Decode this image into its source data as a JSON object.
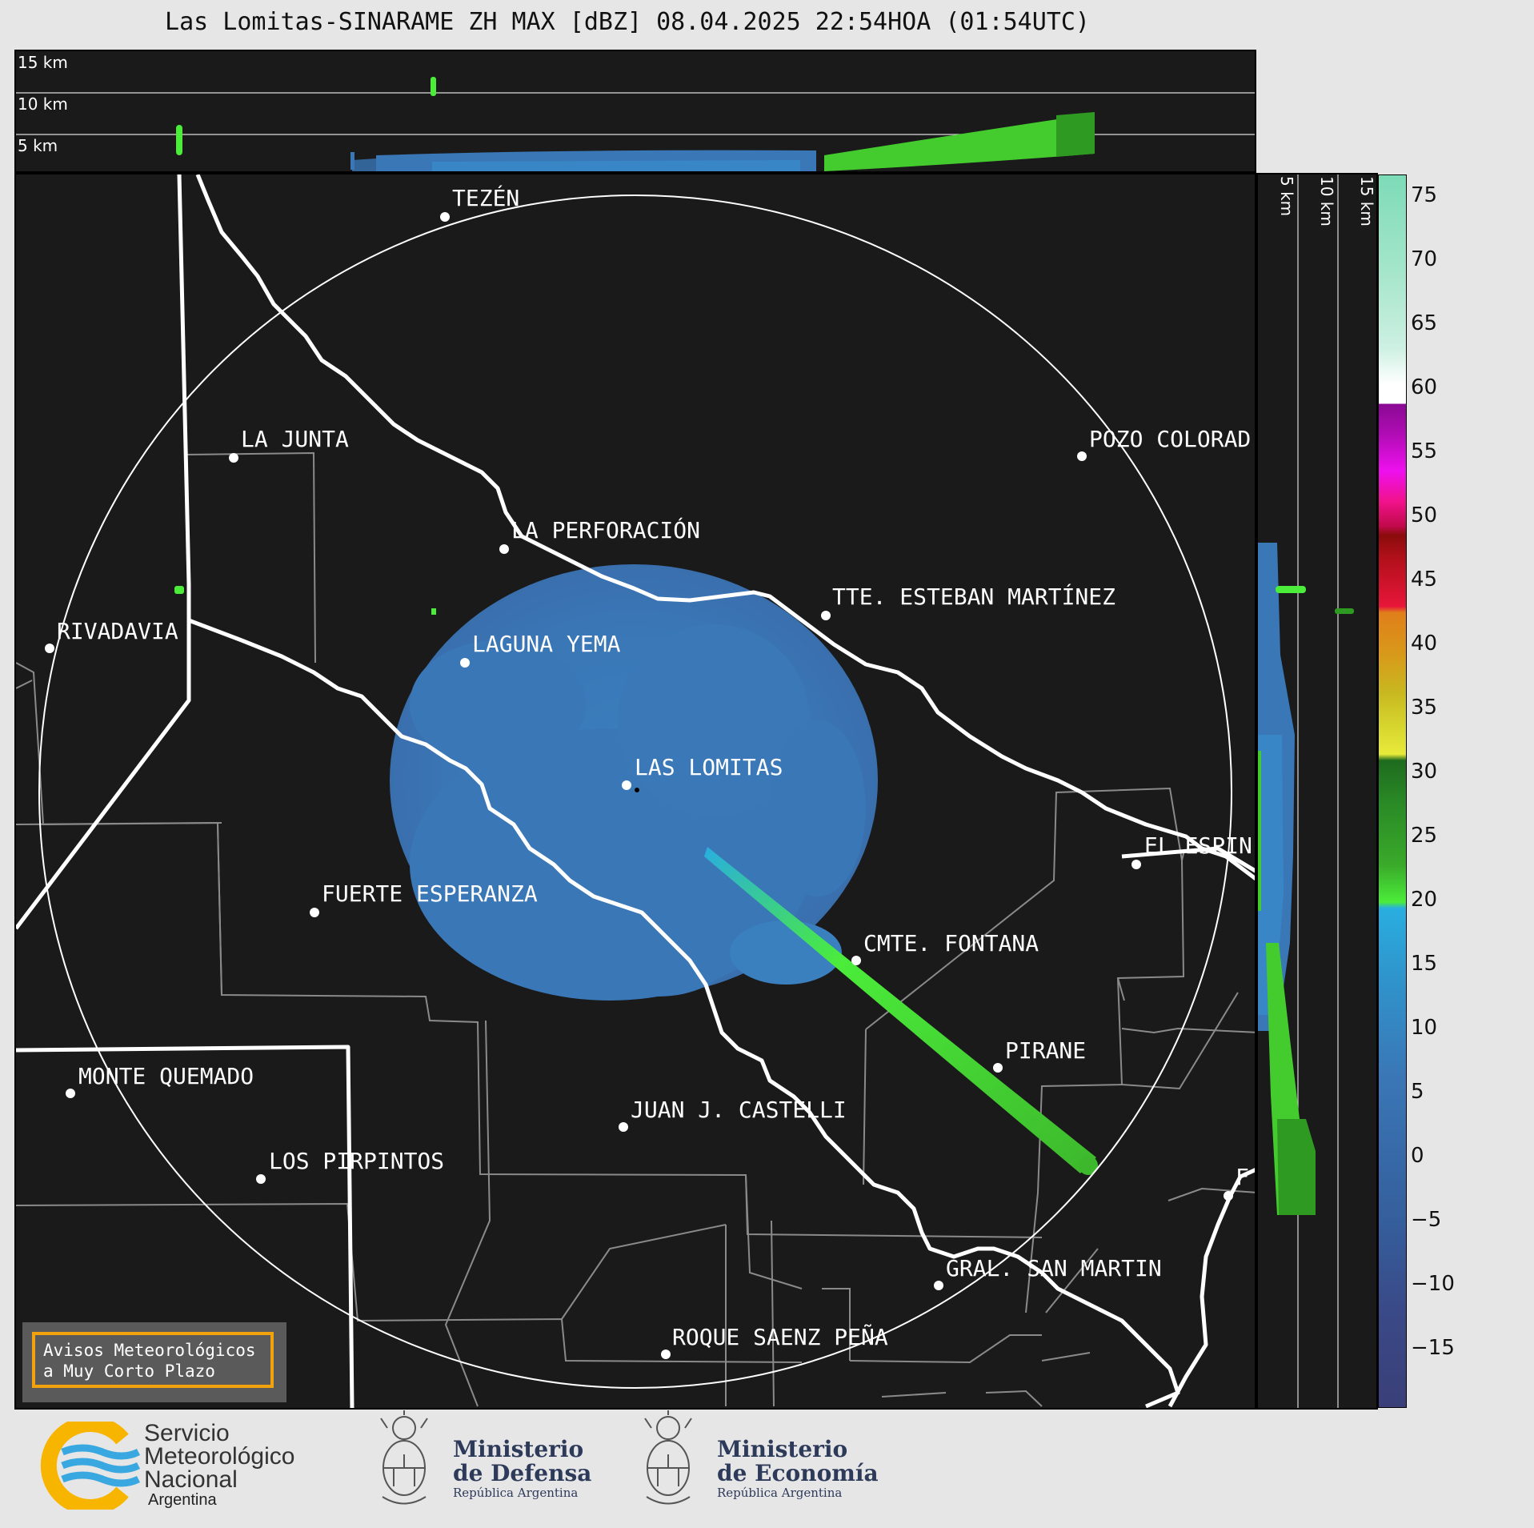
{
  "title": "Las Lomitas-SINARAME ZH MAX [dBZ] 08.04.2025 22:54HOA (01:54UTC)",
  "top_panel": {
    "height_labels": [
      "15 km",
      "10 km",
      "5 km"
    ]
  },
  "right_panel": {
    "height_labels": [
      "5 km",
      "10 km",
      "15 km"
    ]
  },
  "colorbar": {
    "ticks": [
      "75",
      "70",
      "65",
      "60",
      "55",
      "50",
      "45",
      "40",
      "35",
      "30",
      "25",
      "20",
      "15",
      "10",
      "5",
      "0",
      "−5",
      "−10",
      "−15"
    ],
    "range_dbz": [
      -20,
      77
    ],
    "colors": {
      "low": "#3a3f78",
      "blue_mid": "#3a77b7",
      "cyan": "#29aee0",
      "green_light": "#4bec3a",
      "green_dark": "#1e6b1e",
      "yellow": "#e8ea3a",
      "orange": "#e07f1a",
      "red": "#e8163a",
      "dark_red": "#8a0c0c",
      "pink": "#f0128a",
      "magenta": "#ee10ee",
      "purple": "#8a0a94",
      "white": "#ffffff",
      "mint": "#7ddbb8"
    }
  },
  "cities": [
    {
      "name": "TEZÉN"
    },
    {
      "name": "LA JUNTA"
    },
    {
      "name": "POZO COLORAD"
    },
    {
      "name": "LA PERFORACIÓN"
    },
    {
      "name": "TTE. ESTEBAN MARTÍNEZ"
    },
    {
      "name": "RIVADAVIA"
    },
    {
      "name": "LAGUNA YEMA"
    },
    {
      "name": "LAS LOMITAS"
    },
    {
      "name": "EL ESPIN"
    },
    {
      "name": "FUERTE ESPERANZA"
    },
    {
      "name": "CMTE. FONTANA"
    },
    {
      "name": "PIRANE"
    },
    {
      "name": "MONTE QUEMADO"
    },
    {
      "name": "JUAN J. CASTELLI"
    },
    {
      "name": "LOS PIRPINTOS"
    },
    {
      "name": "F"
    },
    {
      "name": "GRAL. SAN MARTIN"
    },
    {
      "name": "ROQUE SAENZ PEÑA"
    }
  ],
  "avisos": {
    "line1": "Avisos Meteorológicos",
    "line2": "a Muy Corto Plazo"
  },
  "footer": {
    "smn": {
      "line1": "Servicio",
      "line2": "Meteorológico",
      "line3": "Nacional",
      "line4": "Argentina"
    },
    "defensa": {
      "line1": "Ministerio",
      "line2": "de Defensa",
      "line3": "República Argentina"
    },
    "economia": {
      "line1": "Ministerio",
      "line2": "de Economía",
      "line3": "República Argentina"
    }
  }
}
